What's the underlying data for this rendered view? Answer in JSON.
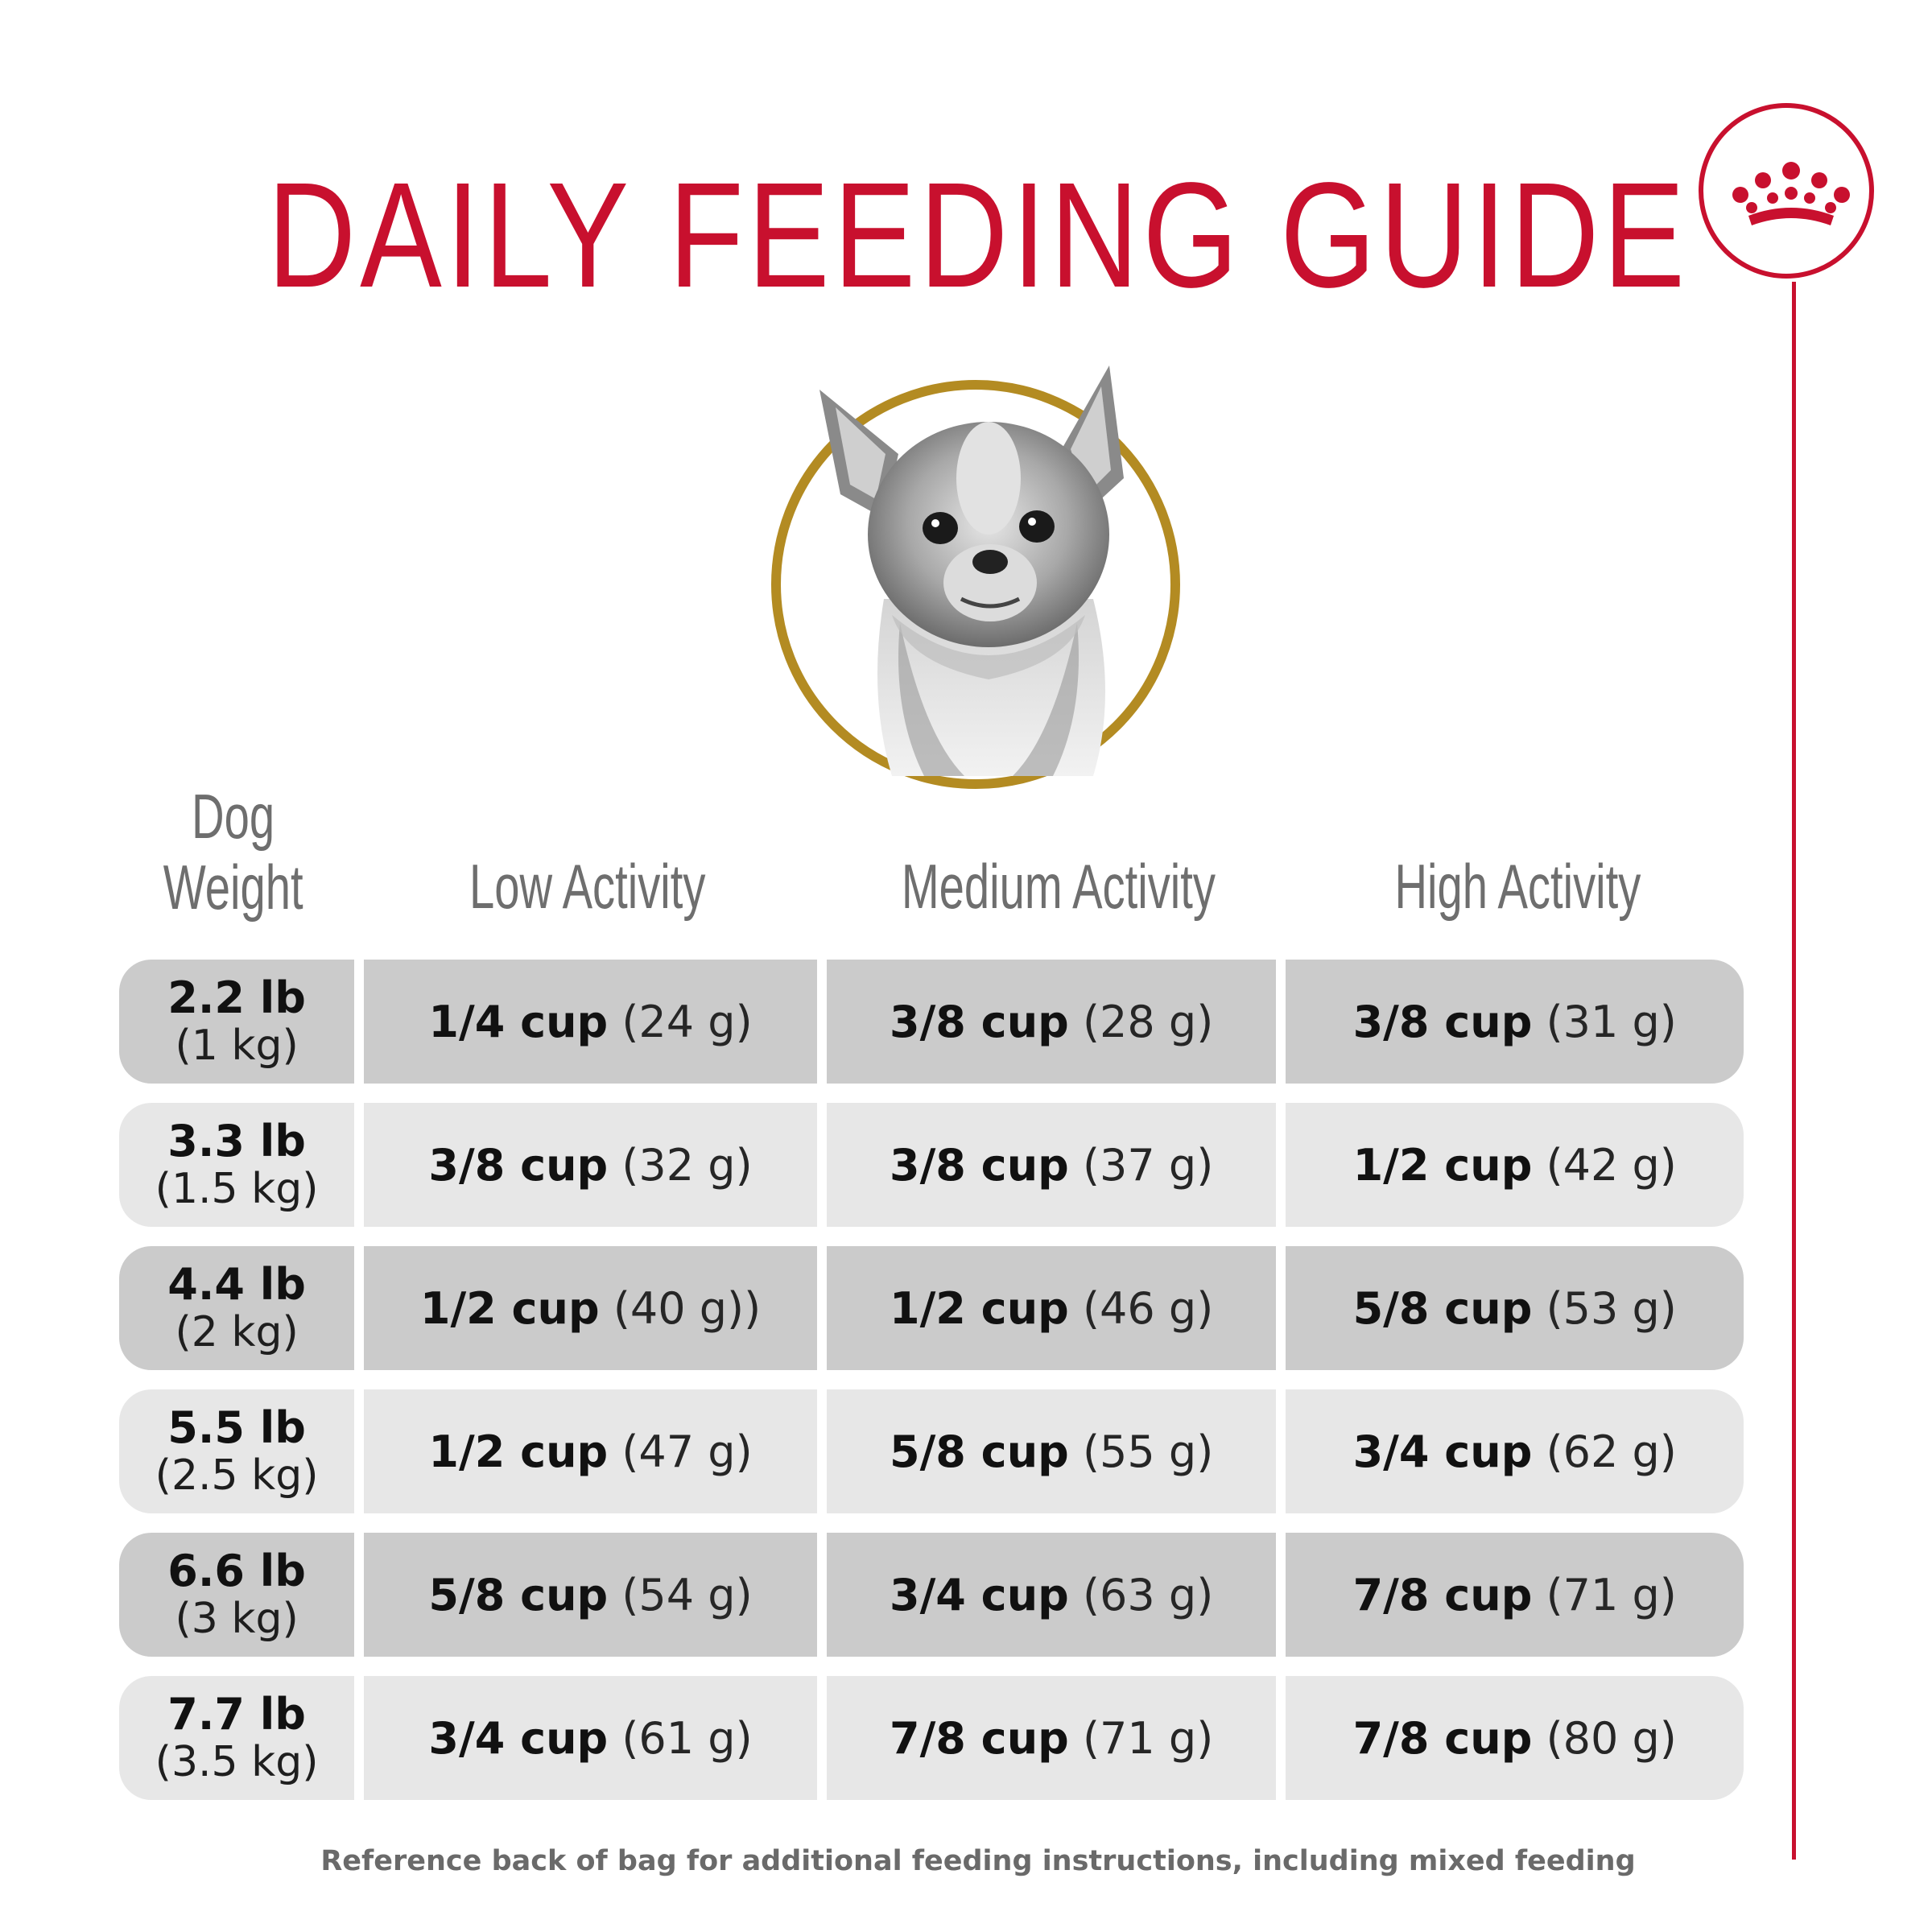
{
  "title": "DAILY FEEDING GUIDE",
  "brand": {
    "accent_color": "#c8102e",
    "logo_icon": "crown-icon"
  },
  "image": {
    "icon": "chihuahua-portrait",
    "ring_color": "#b38b22"
  },
  "headers": {
    "weight_line1": "Dog",
    "weight_line2": "Weight",
    "low": "Low Activity",
    "medium": "Medium Activity",
    "high": "High Activity"
  },
  "rows": [
    {
      "lb": "2.2 lb",
      "kg": "(1 kg)",
      "low": {
        "cup": "1/4 cup",
        "g": "(24 g)"
      },
      "medium": {
        "cup": "3/8 cup",
        "g": "(28 g)"
      },
      "high": {
        "cup": "3/8 cup",
        "g": "(31 g)"
      }
    },
    {
      "lb": "3.3 lb",
      "kg": "(1.5 kg)",
      "low": {
        "cup": "3/8 cup",
        "g": "(32 g)"
      },
      "medium": {
        "cup": "3/8 cup",
        "g": "(37 g)"
      },
      "high": {
        "cup": "1/2 cup",
        "g": "(42 g)"
      }
    },
    {
      "lb": "4.4 lb",
      "kg": "(2 kg)",
      "low": {
        "cup": "1/2 cup",
        "g": "(40 g))"
      },
      "medium": {
        "cup": "1/2 cup",
        "g": "(46 g)"
      },
      "high": {
        "cup": "5/8 cup",
        "g": "(53 g)"
      }
    },
    {
      "lb": "5.5 lb",
      "kg": "(2.5 kg)",
      "low": {
        "cup": "1/2 cup",
        "g": "(47 g)"
      },
      "medium": {
        "cup": "5/8 cup",
        "g": "(55 g)"
      },
      "high": {
        "cup": "3/4 cup",
        "g": "(62 g)"
      }
    },
    {
      "lb": "6.6 lb",
      "kg": "(3 kg)",
      "low": {
        "cup": "5/8 cup",
        "g": "(54 g)"
      },
      "medium": {
        "cup": "3/4 cup",
        "g": "(63 g)"
      },
      "high": {
        "cup": "7/8 cup",
        "g": "(71 g)"
      }
    },
    {
      "lb": "7.7 lb",
      "kg": "(3.5 kg)",
      "low": {
        "cup": "3/4 cup",
        "g": "(61 g)"
      },
      "medium": {
        "cup": "7/8 cup",
        "g": "(71 g)"
      },
      "high": {
        "cup": "7/8 cup",
        "g": "(80 g)"
      }
    }
  ],
  "footer": "Reference back of bag for additional feeding instructions, including mixed feeding"
}
